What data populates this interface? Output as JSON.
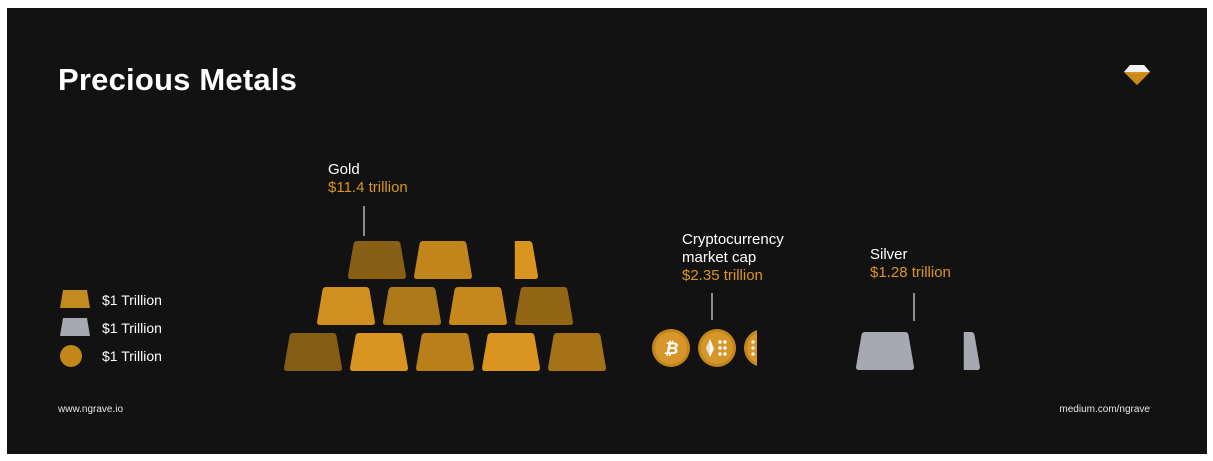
{
  "title": "Precious Metals",
  "legend": [
    {
      "label": "$1 Trillion",
      "shape": "gold-bar",
      "color": "#c28a1f"
    },
    {
      "label": "$1 Trillion",
      "shape": "silver-bar",
      "color": "#a7a9b1"
    },
    {
      "label": "$1 Trillion",
      "shape": "crypto-coin",
      "color": "#c4861a"
    }
  ],
  "colors": {
    "background": "#121212",
    "gold": "#d9951f",
    "gold_dark": "#7a5612",
    "silver": "#a7a9b1",
    "text": "#ffffff"
  },
  "logo": "ngrave-diamond-icon",
  "footer": {
    "left": "www.ngrave.io",
    "right": "medium.com/ngrave"
  },
  "chart_data": {
    "type": "pictograph",
    "unit": "$1 Trillion per symbol",
    "series": [
      {
        "name": "Gold",
        "value_label": "$11.4 trillion",
        "value": 11.4,
        "symbol": "gold-bar"
      },
      {
        "name": "Cryptocurrency market cap",
        "value_label": "$2.35 trillion",
        "value": 2.35,
        "symbol": "crypto-coin"
      },
      {
        "name": "Silver",
        "value_label": "$1.28 trillion",
        "value": 1.28,
        "symbol": "silver-bar"
      }
    ],
    "labels": {
      "gold_name": "Gold",
      "gold_value": "$11.4 trillion",
      "crypto_line1": "Cryptocurrency",
      "crypto_line2": "market cap",
      "crypto_value": "$2.35 trillion",
      "silver_name": "Silver",
      "silver_value": "$1.28 trillion"
    },
    "coin_icons": [
      "bitcoin-icon",
      "ethereum-icon",
      "dots-icon"
    ]
  }
}
